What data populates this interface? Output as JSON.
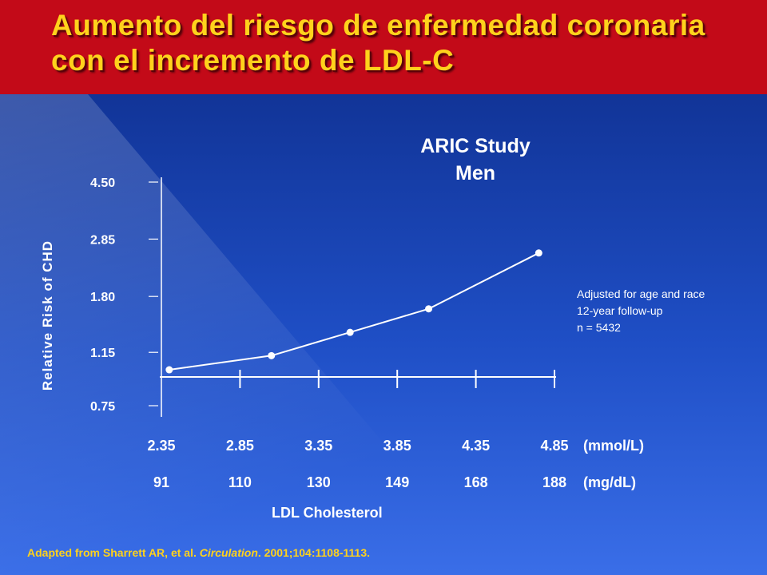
{
  "slide": {
    "title": "Aumento del riesgo de enfermedad coronaria con el incremento de LDL-C",
    "citation_prefix": "Adapted from Sharrett AR, et al. ",
    "citation_journal": "Circulation",
    "citation_suffix": ". 2001;104:1108-1113.",
    "colors": {
      "banner": "#c30a18",
      "title_text": "#ffd21c",
      "background": "#1f4fc6",
      "line": "#ffffff"
    }
  },
  "chart_data": {
    "type": "line",
    "title": "ARIC Study",
    "subtitle": "Men",
    "ylabel": "Relative Risk of CHD",
    "xlabel": "LDL Cholesterol",
    "y_scale": "log",
    "y_ticks": [
      "4.50",
      "2.85",
      "1.80",
      "1.15",
      "0.75"
    ],
    "y_tick_values": [
      4.5,
      2.85,
      1.8,
      1.15,
      0.75
    ],
    "x_ticks_mmol": [
      "2.35",
      "2.85",
      "3.35",
      "3.85",
      "4.35",
      "4.85"
    ],
    "x_ticks_mgdl": [
      "91",
      "110",
      "130",
      "149",
      "168",
      "188"
    ],
    "x_unit_mmol": "(mmol/L)",
    "x_unit_mgdl": "(mg/dL)",
    "xlim_mmol": [
      2.35,
      4.85
    ],
    "series": [
      {
        "x": [
          2.4,
          3.05,
          3.55,
          4.05,
          4.75
        ],
        "y": [
          1.0,
          1.12,
          1.35,
          1.63,
          2.55
        ]
      }
    ],
    "reference_line_y": 1.0,
    "annotations": [
      "Adjusted for age and race",
      "12-year follow-up",
      "n = 5432"
    ],
    "grid": false
  }
}
